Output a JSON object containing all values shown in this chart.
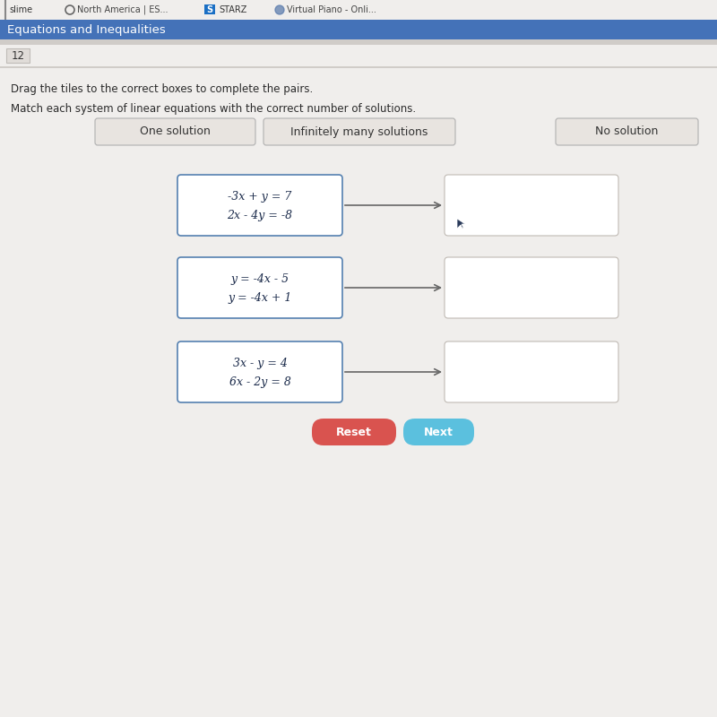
{
  "bg_color": "#e8e4e0",
  "browser_bar_bg": "#f0eeec",
  "header_bar_color": "#4472b8",
  "header_text": "Equations and Inequalities",
  "header_text_color": "#ffffff",
  "question_number": "12",
  "instruction1": "Drag the tiles to the correct boxes to complete the pairs.",
  "instruction2": "Match each system of linear equations with the correct number of solutions.",
  "tile_labels": [
    "One solution",
    "Infinitely many solutions",
    "No solution"
  ],
  "tile_bg": "#e8e4e0",
  "tile_border": "#b0b0b0",
  "eq_box_bg": "#ffffff",
  "eq_box_border": "#5580b0",
  "answer_box_bg": "#ffffff",
  "answer_box_border": "#c0bab4",
  "systems": [
    [
      "-3x + y = 7",
      "2x - 4y = -8"
    ],
    [
      "y = -4x - 5",
      "y = -4x + 1"
    ],
    [
      "3x - y = 4",
      "6x - 2y = 8"
    ]
  ],
  "arrow_color": "#666666",
  "reset_btn_color": "#d9534f",
  "next_btn_color": "#5bc0de",
  "reset_text": "Reset",
  "next_text": "Next",
  "btn_text_color": "#ffffff",
  "num_box_bg": "#e0dcd8",
  "num_box_border": "#c0bcb8",
  "content_bg": "#f0eeec",
  "sep_color": "#d0ccc8",
  "cursor_color": "#2a3a5a"
}
